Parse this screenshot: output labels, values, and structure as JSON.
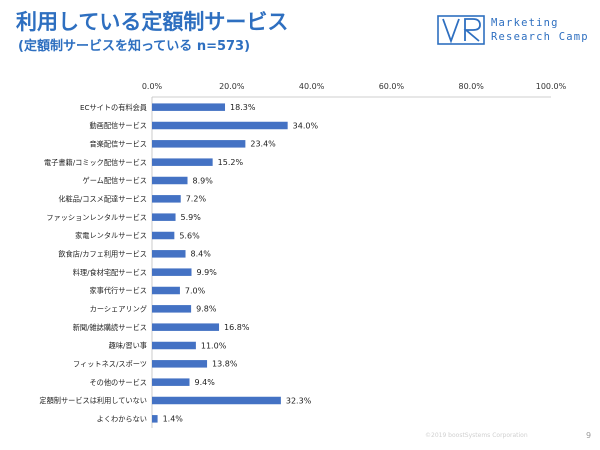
{
  "header": {
    "title": "利用している定額制サービス",
    "subtitle": "(定額制サービスを知っている n=573)"
  },
  "brand": {
    "line1": "Marketing",
    "line2": "Research Camp"
  },
  "footer": {
    "copyright": "©2019 boostSystems Corporation",
    "page": "9"
  },
  "colors": {
    "bar": "#4472c4",
    "title": "#2e6fc0"
  },
  "chart_data": {
    "type": "bar",
    "orientation": "horizontal",
    "title": "",
    "xlabel": "",
    "ylabel": "",
    "xlim": [
      0,
      100
    ],
    "ticks": [
      "0.0%",
      "20.0%",
      "40.0%",
      "60.0%",
      "80.0%",
      "100.0%"
    ],
    "tick_values": [
      0,
      20,
      40,
      60,
      80,
      100
    ],
    "grid": false,
    "categories": [
      "ECサイトの有料会員",
      "動画配信サービス",
      "音楽配信サービス",
      "電子書籍/コミック配信サービス",
      "ゲーム配信サービス",
      "化粧品/コスメ配達サービス",
      "ファッションレンタルサービス",
      "家電レンタルサービス",
      "飲食店/カフェ利用サービス",
      "料理/食材宅配サービス",
      "家事代行サービス",
      "カーシェアリング",
      "新聞/雑誌購読サービス",
      "趣味/習い事",
      "フィットネス/スポーツ",
      "その他のサービス",
      "定額制サービスは利用していない",
      "よくわからない"
    ],
    "values": [
      18.3,
      34.0,
      23.4,
      15.2,
      8.9,
      7.2,
      5.9,
      5.6,
      8.4,
      9.9,
      7.0,
      9.8,
      16.8,
      11.0,
      13.8,
      9.4,
      32.3,
      1.4
    ],
    "labels": [
      "18.3%",
      "34.0%",
      "23.4%",
      "15.2%",
      "8.9%",
      "7.2%",
      "5.9%",
      "5.6%",
      "8.4%",
      "9.9%",
      "7.0%",
      "9.8%",
      "16.8%",
      "11.0%",
      "13.8%",
      "9.4%",
      "32.3%",
      "1.4%"
    ]
  }
}
